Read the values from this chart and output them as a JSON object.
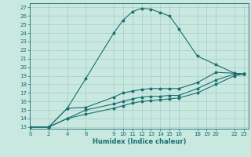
{
  "xlabel": "Humidex (Indice chaleur)",
  "bg_color": "#c8e8e0",
  "grid_color": "#a8ccc8",
  "line_color": "#1a7070",
  "xticks": [
    0,
    2,
    4,
    6,
    9,
    10,
    11,
    12,
    13,
    14,
    15,
    16,
    18,
    19,
    20,
    22,
    23
  ],
  "yticks": [
    13,
    14,
    15,
    16,
    17,
    18,
    19,
    20,
    21,
    22,
    23,
    24,
    25,
    26,
    27
  ],
  "xlim": [
    0,
    23.5
  ],
  "ylim": [
    12.8,
    27.5
  ],
  "lines": [
    {
      "x": [
        0,
        2,
        4,
        6,
        9,
        10,
        11,
        12,
        13,
        14,
        15,
        16,
        18,
        20,
        22,
        23
      ],
      "y": [
        13,
        13,
        15.2,
        18.7,
        24.0,
        25.5,
        26.5,
        26.9,
        26.8,
        26.4,
        26.0,
        24.5,
        21.3,
        20.3,
        19.3,
        19.2
      ]
    },
    {
      "x": [
        0,
        2,
        4,
        6,
        9,
        10,
        11,
        12,
        13,
        14,
        15,
        16,
        18,
        20,
        22,
        23
      ],
      "y": [
        13,
        13,
        15.2,
        15.3,
        16.5,
        17.0,
        17.2,
        17.4,
        17.5,
        17.5,
        17.5,
        17.5,
        18.2,
        19.4,
        19.3,
        19.2
      ]
    },
    {
      "x": [
        0,
        2,
        4,
        6,
        9,
        10,
        11,
        12,
        13,
        14,
        15,
        16,
        18,
        20,
        22,
        23
      ],
      "y": [
        13,
        13,
        14.0,
        15.0,
        15.7,
        16.0,
        16.3,
        16.5,
        16.6,
        16.6,
        16.7,
        16.7,
        17.5,
        18.5,
        19.2,
        19.2
      ]
    },
    {
      "x": [
        0,
        2,
        4,
        6,
        9,
        10,
        11,
        12,
        13,
        14,
        15,
        16,
        18,
        20,
        22,
        23
      ],
      "y": [
        13,
        13,
        14.0,
        14.5,
        15.2,
        15.5,
        15.8,
        16.0,
        16.1,
        16.2,
        16.3,
        16.4,
        17.0,
        18.0,
        19.0,
        19.2
      ]
    }
  ],
  "marker_x": [
    4,
    6,
    9,
    10,
    11,
    12,
    13,
    14,
    15,
    16,
    18,
    20,
    22,
    23
  ],
  "marker_y_line0": [
    15.2,
    18.7,
    24.0,
    25.5,
    26.5,
    26.9,
    26.8,
    26.4,
    26.0,
    24.5,
    21.3,
    20.3,
    19.3,
    19.2
  ],
  "marker_y_line1": [
    15.2,
    15.3,
    16.5,
    17.0,
    17.2,
    17.4,
    17.5,
    17.5,
    17.5,
    17.5,
    18.2,
    19.4,
    19.3,
    19.2
  ]
}
